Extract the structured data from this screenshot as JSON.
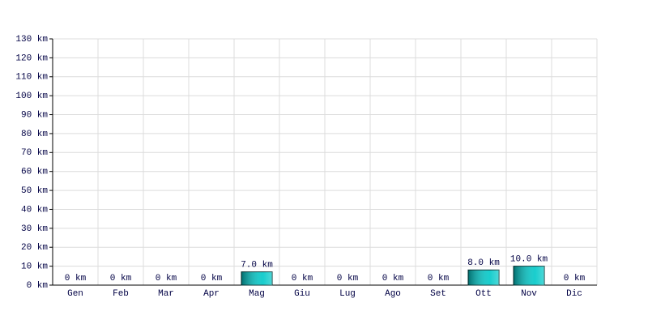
{
  "chart_data": {
    "type": "bar",
    "categories": [
      "Gen",
      "Feb",
      "Mar",
      "Apr",
      "Mag",
      "Giu",
      "Lug",
      "Ago",
      "Set",
      "Ott",
      "Nov",
      "Dic"
    ],
    "values": [
      0,
      0,
      0,
      0,
      7,
      0,
      0,
      0,
      0,
      8,
      10,
      0
    ],
    "value_labels": [
      "0 km",
      "0 km",
      "0 km",
      "0 km",
      "7.0 km",
      "0 km",
      "0 km",
      "0 km",
      "0 km",
      "8.0 km",
      "10.0 km",
      "0 km"
    ],
    "color": "#00c8c8",
    "ylim": [
      0,
      130
    ],
    "yticks": [
      {
        "value": 0,
        "label": "0 km"
      },
      {
        "value": 10,
        "label": "10 km"
      },
      {
        "value": 20,
        "label": "20 km"
      },
      {
        "value": 30,
        "label": "30 km"
      },
      {
        "value": 40,
        "label": "40 km"
      },
      {
        "value": 50,
        "label": "50 km"
      },
      {
        "value": 60,
        "label": "60 km"
      },
      {
        "value": 70,
        "label": "70 km"
      },
      {
        "value": 80,
        "label": "80 km"
      },
      {
        "value": 90,
        "label": "90 km"
      },
      {
        "value": 100,
        "label": "100 km"
      },
      {
        "value": 110,
        "label": "110 km"
      },
      {
        "value": 120,
        "label": "120 km"
      },
      {
        "value": 130,
        "label": "130 km"
      }
    ],
    "grid": true
  }
}
